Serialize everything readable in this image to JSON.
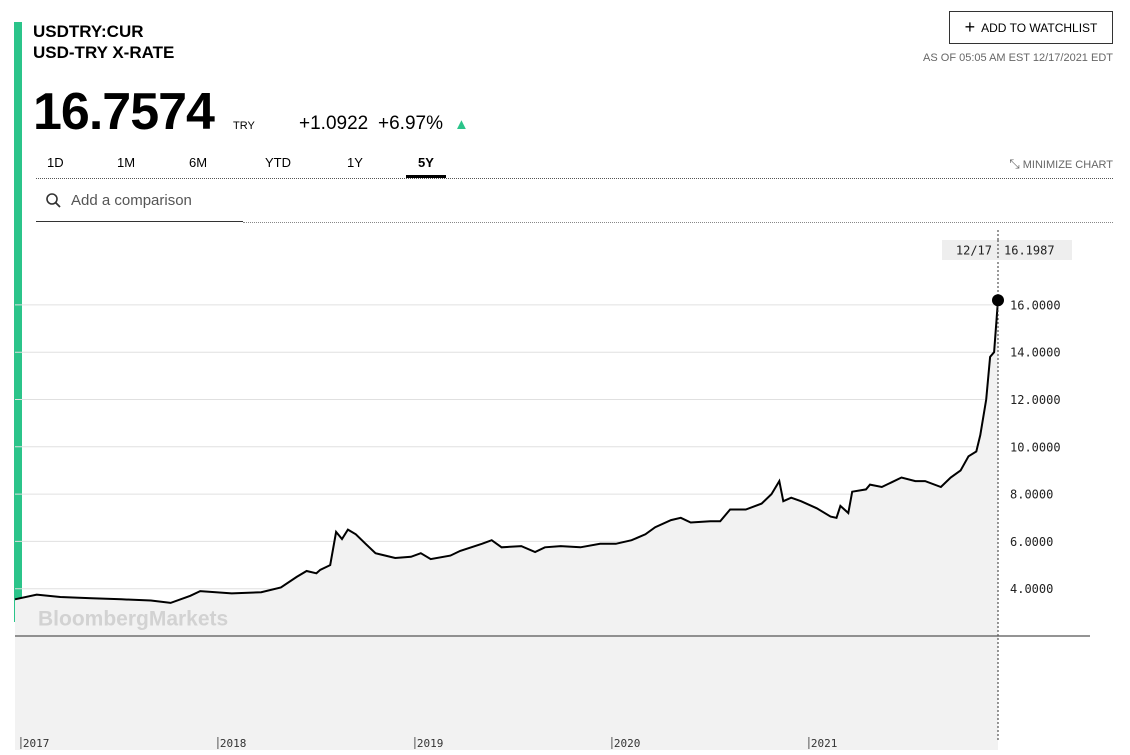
{
  "header": {
    "symbol": "USDTRY:CUR",
    "name": "USD-TRY X-RATE",
    "price": "16.7574",
    "currency": "TRY",
    "change": "+1.0922",
    "change_pct": "+6.97%",
    "watchlist_button": "ADD TO WATCHLIST",
    "as_of": "AS OF 05:05 AM EST 12/17/2021 EDT"
  },
  "tabs": [
    "1D",
    "1M",
    "6M",
    "YTD",
    "1Y",
    "5Y"
  ],
  "active_tab_index": 5,
  "minimize": "MINIMIZE CHART",
  "search_placeholder": "Add a comparison",
  "chart_data": {
    "type": "line",
    "watermark": "BloombergMarkets",
    "color": "#000000",
    "fill": "#f2f2f2",
    "grid": true,
    "crosshair_date": "12/17",
    "x": [
      2016.97,
      2017.08,
      2017.2,
      2017.36,
      2017.51,
      2017.66,
      2017.76,
      2017.86,
      2017.91,
      2018.07,
      2018.22,
      2018.32,
      2018.4,
      2018.45,
      2018.5,
      2018.52,
      2018.57,
      2018.6,
      2018.63,
      2018.66,
      2018.7,
      2018.75,
      2018.8,
      2018.9,
      2018.98,
      2019.03,
      2019.08,
      2019.18,
      2019.23,
      2019.34,
      2019.39,
      2019.44,
      2019.54,
      2019.61,
      2019.66,
      2019.74,
      2019.84,
      2019.94,
      2020.02,
      2020.1,
      2020.17,
      2020.22,
      2020.3,
      2020.35,
      2020.4,
      2020.5,
      2020.55,
      2020.6,
      2020.68,
      2020.76,
      2020.81,
      2020.85,
      2020.87,
      2020.91,
      2020.96,
      2021.04,
      2021.11,
      2021.14,
      2021.16,
      2021.2,
      2021.22,
      2021.29,
      2021.31,
      2021.37,
      2021.42,
      2021.47,
      2021.54,
      2021.59,
      2021.67,
      2021.72,
      2021.77,
      2021.81,
      2021.85,
      2021.87,
      2021.9,
      2021.92,
      2021.94,
      2021.96
    ],
    "values": [
      3.55,
      3.75,
      3.65,
      3.6,
      3.55,
      3.5,
      3.4,
      3.7,
      3.9,
      3.8,
      3.85,
      4.05,
      4.5,
      4.75,
      4.65,
      4.8,
      5.0,
      6.4,
      6.1,
      6.5,
      6.3,
      5.9,
      5.5,
      5.3,
      5.35,
      5.5,
      5.25,
      5.4,
      5.6,
      5.9,
      6.05,
      5.75,
      5.8,
      5.55,
      5.75,
      5.8,
      5.75,
      5.9,
      5.9,
      6.05,
      6.3,
      6.6,
      6.9,
      7.0,
      6.8,
      6.85,
      6.85,
      7.35,
      7.35,
      7.6,
      8.0,
      8.55,
      7.7,
      7.85,
      7.7,
      7.4,
      7.05,
      7.0,
      7.5,
      7.2,
      8.1,
      8.2,
      8.4,
      8.3,
      8.5,
      8.7,
      8.55,
      8.55,
      8.3,
      8.7,
      9.0,
      9.6,
      9.8,
      10.5,
      12.0,
      13.8,
      14.0,
      16.1987
    ],
    "xlim": [
      2016.97,
      2021.96
    ],
    "xticks": [
      2017,
      2018,
      2019,
      2020,
      2021
    ],
    "ylim": [
      2.0,
      18.66
    ],
    "yticks": [
      {
        "value": 4,
        "label": "4.0000"
      },
      {
        "value": 6,
        "label": "6.0000"
      },
      {
        "value": 8,
        "label": "8.0000"
      },
      {
        "value": 10,
        "label": "10.0000"
      },
      {
        "value": 12,
        "label": "12.0000"
      },
      {
        "value": 14,
        "label": "14.0000"
      },
      {
        "value": 16,
        "label": "16.0000"
      }
    ]
  }
}
